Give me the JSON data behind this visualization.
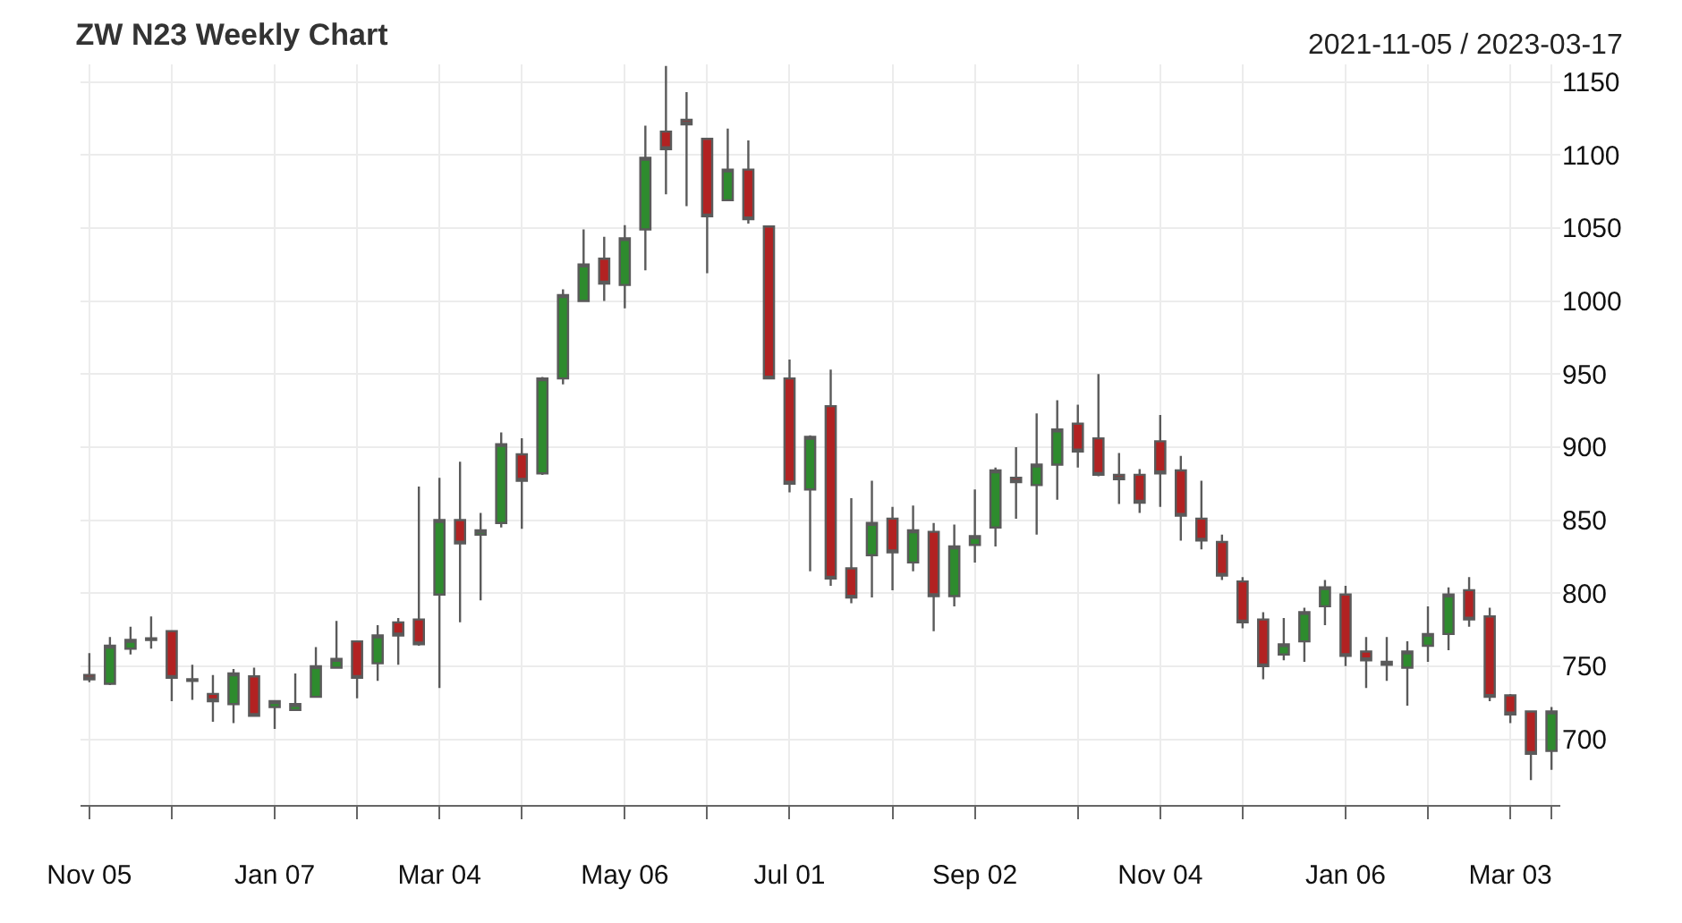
{
  "chart_data": {
    "type": "candlestick",
    "title": "ZW N23 Weekly Chart",
    "subtitle": "2021-11-05 / 2023-03-17",
    "x": [
      "2021-11-05",
      "2021-11-12",
      "2021-11-19",
      "2021-11-26",
      "2021-12-03",
      "2021-12-10",
      "2021-12-17",
      "2021-12-24",
      "2021-12-31",
      "2022-01-07",
      "2022-01-14",
      "2022-01-21",
      "2022-01-28",
      "2022-02-04",
      "2022-02-11",
      "2022-02-18",
      "2022-02-25",
      "2022-03-04",
      "2022-03-11",
      "2022-03-18",
      "2022-03-25",
      "2022-04-01",
      "2022-04-08",
      "2022-04-15",
      "2022-04-22",
      "2022-04-29",
      "2022-05-06",
      "2022-05-13",
      "2022-05-20",
      "2022-05-27",
      "2022-06-03",
      "2022-06-10",
      "2022-06-17",
      "2022-06-24",
      "2022-07-01",
      "2022-07-08",
      "2022-07-15",
      "2022-07-22",
      "2022-07-29",
      "2022-08-05",
      "2022-08-12",
      "2022-08-19",
      "2022-08-26",
      "2022-09-02",
      "2022-09-09",
      "2022-09-16",
      "2022-09-23",
      "2022-09-30",
      "2022-10-07",
      "2022-10-14",
      "2022-10-21",
      "2022-10-28",
      "2022-11-04",
      "2022-11-11",
      "2022-11-18",
      "2022-11-25",
      "2022-12-02",
      "2022-12-09",
      "2022-12-16",
      "2022-12-23",
      "2022-12-30",
      "2023-01-06",
      "2023-01-13",
      "2023-01-20",
      "2023-01-27",
      "2023-02-03",
      "2023-02-10",
      "2023-02-17",
      "2023-02-24",
      "2023-03-03",
      "2023-03-10",
      "2023-03-17"
    ],
    "ohlc": [
      [
        744,
        759,
        739,
        741
      ],
      [
        738,
        770,
        737,
        764
      ],
      [
        762,
        777,
        758,
        768
      ],
      [
        768,
        784,
        762,
        769
      ],
      [
        774,
        774,
        726,
        742
      ],
      [
        741,
        751,
        727,
        740
      ],
      [
        731,
        744,
        712,
        726
      ],
      [
        724,
        748,
        711,
        745
      ],
      [
        743,
        749,
        716,
        716
      ],
      [
        722,
        726,
        707,
        726
      ],
      [
        720,
        745,
        720,
        724
      ],
      [
        729,
        763,
        729,
        750
      ],
      [
        749,
        781,
        749,
        755
      ],
      [
        767,
        767,
        728,
        742
      ],
      [
        752,
        778,
        740,
        771
      ],
      [
        780,
        783,
        751,
        771
      ],
      [
        782,
        873,
        764,
        765
      ],
      [
        799,
        879,
        735,
        850
      ],
      [
        850,
        890,
        780,
        834
      ],
      [
        840,
        855,
        795,
        843
      ],
      [
        848,
        910,
        845,
        902
      ],
      [
        895,
        906,
        844,
        877
      ],
      [
        882,
        948,
        881,
        947
      ],
      [
        947,
        1008,
        943,
        1004
      ],
      [
        1000,
        1049,
        1000,
        1025
      ],
      [
        1029,
        1044,
        1000,
        1012
      ],
      [
        1011,
        1052,
        995,
        1043
      ],
      [
        1049,
        1120,
        1021,
        1098
      ],
      [
        1116,
        1161,
        1073,
        1104
      ],
      [
        1124,
        1143,
        1065,
        1121
      ],
      [
        1111,
        1111,
        1019,
        1058
      ],
      [
        1069,
        1118,
        1069,
        1090
      ],
      [
        1090,
        1110,
        1053,
        1056
      ],
      [
        1051,
        1051,
        947,
        947
      ],
      [
        947,
        960,
        869,
        875
      ],
      [
        871,
        908,
        815,
        907
      ],
      [
        928,
        953,
        805,
        810
      ],
      [
        817,
        865,
        793,
        797
      ],
      [
        826,
        877,
        797,
        848
      ],
      [
        851,
        859,
        802,
        828
      ],
      [
        821,
        860,
        815,
        843
      ],
      [
        842,
        848,
        774,
        798
      ],
      [
        798,
        847,
        791,
        832
      ],
      [
        833,
        871,
        821,
        839
      ],
      [
        845,
        886,
        832,
        884
      ],
      [
        879,
        900,
        851,
        876
      ],
      [
        874,
        923,
        840,
        888
      ],
      [
        888,
        932,
        864,
        912
      ],
      [
        916,
        929,
        886,
        897
      ],
      [
        906,
        950,
        880,
        881
      ],
      [
        881,
        896,
        861,
        878
      ],
      [
        881,
        885,
        855,
        862
      ],
      [
        904,
        922,
        859,
        882
      ],
      [
        884,
        894,
        836,
        853
      ],
      [
        851,
        877,
        830,
        836
      ],
      [
        835,
        840,
        809,
        812
      ],
      [
        808,
        811,
        776,
        780
      ],
      [
        782,
        787,
        741,
        750
      ],
      [
        758,
        783,
        754,
        765
      ],
      [
        767,
        790,
        753,
        787
      ],
      [
        791,
        809,
        778,
        804
      ],
      [
        799,
        805,
        750,
        757
      ],
      [
        760,
        770,
        735,
        754
      ],
      [
        753,
        770,
        740,
        751
      ],
      [
        749,
        767,
        723,
        760
      ],
      [
        764,
        791,
        753,
        772
      ],
      [
        772,
        804,
        761,
        799
      ],
      [
        802,
        811,
        777,
        782
      ],
      [
        784,
        790,
        726,
        729
      ],
      [
        730,
        731,
        711,
        717
      ],
      [
        719,
        719,
        672,
        690
      ],
      [
        692,
        722,
        679,
        719
      ]
    ],
    "xlim": [
      "2021-11-02",
      "2023-03-20"
    ],
    "xticks": [
      {
        "value": "2021-11-05",
        "label": "Nov 05"
      },
      {
        "value": "2021-12-03",
        "label": null
      },
      {
        "value": "2022-01-07",
        "label": "Jan 07"
      },
      {
        "value": "2022-02-04",
        "label": null
      },
      {
        "value": "2022-03-04",
        "label": "Mar 04"
      },
      {
        "value": "2022-04-01",
        "label": null
      },
      {
        "value": "2022-05-06",
        "label": "May 06"
      },
      {
        "value": "2022-06-03",
        "label": null
      },
      {
        "value": "2022-07-01",
        "label": "Jul 01"
      },
      {
        "value": "2022-08-05",
        "label": null
      },
      {
        "value": "2022-09-02",
        "label": "Sep 02"
      },
      {
        "value": "2022-10-07",
        "label": null
      },
      {
        "value": "2022-11-04",
        "label": "Nov 04"
      },
      {
        "value": "2022-12-02",
        "label": null
      },
      {
        "value": "2023-01-06",
        "label": "Jan 06"
      },
      {
        "value": "2023-02-03",
        "label": null
      },
      {
        "value": "2023-03-03",
        "label": "Mar 03"
      },
      {
        "value": "2023-03-17",
        "label": null
      }
    ],
    "ylim": [
      655,
      1162
    ],
    "yticks": [
      700,
      750,
      800,
      850,
      900,
      950,
      1000,
      1050,
      1100,
      1150
    ],
    "grid": true
  }
}
